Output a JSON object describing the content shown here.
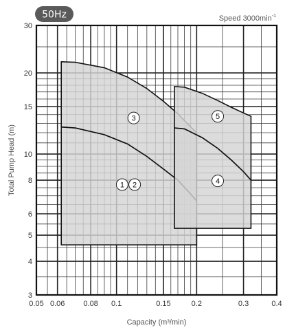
{
  "header": {
    "frequency_badge": "50Hz",
    "speed_label": "Speed 3000min",
    "speed_exponent": "-1"
  },
  "chart_data": {
    "type": "area",
    "xscale": "log",
    "yscale": "log",
    "xlim": [
      0.05,
      0.4
    ],
    "ylim": [
      3,
      30
    ],
    "xlabel": "Capacity (m³/min)",
    "ylabel": "Total Pump Head (m)",
    "grid": true,
    "xticks": [
      0.05,
      0.06,
      0.08,
      0.1,
      0.15,
      0.2,
      0.3,
      0.4
    ],
    "xtick_labels": [
      "0.05",
      "0.06",
      "0.08",
      "0.1",
      "0.15",
      "0.2",
      "0.3",
      "0.4"
    ],
    "yticks": [
      3,
      4,
      5,
      6,
      8,
      10,
      15,
      20,
      30
    ],
    "ytick_labels": [
      "3",
      "4",
      "5",
      "6",
      "8",
      "10",
      "15",
      "20",
      "30"
    ],
    "regions": [
      {
        "labels": [
          "1",
          "2"
        ],
        "label_pos": [
          [
            0.105,
            7.7
          ],
          [
            0.117,
            7.7
          ]
        ],
        "outline": [
          [
            0.062,
            4.6
          ],
          [
            0.062,
            12.6
          ],
          [
            0.07,
            12.5
          ],
          [
            0.09,
            11.8
          ],
          [
            0.11,
            10.9
          ],
          [
            0.13,
            9.8
          ],
          [
            0.15,
            8.8
          ],
          [
            0.17,
            8.0
          ],
          [
            0.19,
            7.1
          ],
          [
            0.2,
            6.7
          ],
          [
            0.2,
            4.6
          ]
        ]
      },
      {
        "labels": [
          "3"
        ],
        "label_pos": [
          [
            0.116,
            13.6
          ]
        ],
        "outline": [
          [
            0.062,
            12.6
          ],
          [
            0.062,
            22.0
          ],
          [
            0.07,
            21.9
          ],
          [
            0.09,
            20.9
          ],
          [
            0.11,
            19.3
          ],
          [
            0.13,
            17.5
          ],
          [
            0.15,
            15.7
          ],
          [
            0.17,
            14.1
          ],
          [
            0.19,
            12.6
          ],
          [
            0.2,
            12.0
          ],
          [
            0.2,
            6.7
          ],
          [
            0.19,
            7.1
          ],
          [
            0.17,
            8.0
          ],
          [
            0.15,
            8.8
          ],
          [
            0.13,
            9.8
          ],
          [
            0.11,
            10.9
          ],
          [
            0.09,
            11.8
          ],
          [
            0.07,
            12.5
          ]
        ]
      },
      {
        "labels": [
          "4"
        ],
        "label_pos": [
          [
            0.24,
            7.95
          ]
        ],
        "outline": [
          [
            0.165,
            5.3
          ],
          [
            0.165,
            12.5
          ],
          [
            0.18,
            12.4
          ],
          [
            0.21,
            11.5
          ],
          [
            0.24,
            10.5
          ],
          [
            0.27,
            9.5
          ],
          [
            0.3,
            8.6
          ],
          [
            0.32,
            8.0
          ],
          [
            0.32,
            5.3
          ]
        ]
      },
      {
        "labels": [
          "5"
        ],
        "label_pos": [
          [
            0.24,
            13.8
          ]
        ],
        "outline": [
          [
            0.165,
            12.5
          ],
          [
            0.165,
            17.8
          ],
          [
            0.18,
            17.7
          ],
          [
            0.21,
            16.8
          ],
          [
            0.24,
            15.8
          ],
          [
            0.27,
            14.9
          ],
          [
            0.3,
            14.2
          ],
          [
            0.32,
            13.8
          ],
          [
            0.32,
            8.0
          ],
          [
            0.3,
            8.6
          ],
          [
            0.27,
            9.5
          ],
          [
            0.24,
            10.5
          ],
          [
            0.21,
            11.5
          ],
          [
            0.18,
            12.4
          ]
        ]
      }
    ]
  }
}
